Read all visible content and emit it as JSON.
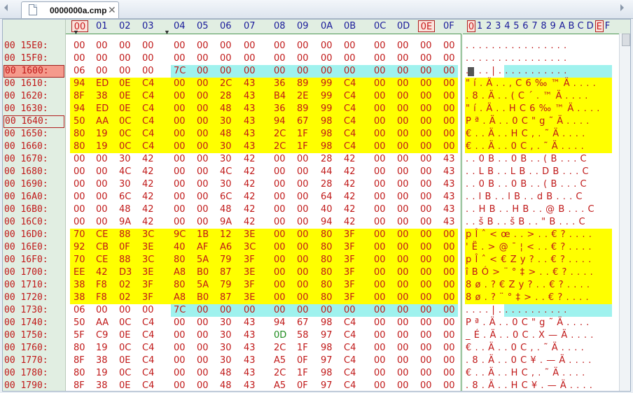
{
  "tab": {
    "title": "0000000a.cmp",
    "close": "✕"
  },
  "header": {
    "hex": [
      "00",
      "01",
      "02",
      "03",
      "04",
      "05",
      "06",
      "07",
      "08",
      "09",
      "0A",
      "0B",
      "0C",
      "0D",
      "0E",
      "0F"
    ],
    "ascii": [
      "0",
      "1",
      "2",
      "3",
      "4",
      "5",
      "6",
      "7",
      "8",
      "9",
      "A",
      "B",
      "C",
      "D",
      "E",
      "F"
    ]
  },
  "rows": [
    {
      "addr": "00 15E0:",
      "bytes": [
        "00",
        "00",
        "00",
        "00",
        "00",
        "00",
        "00",
        "00",
        "00",
        "00",
        "00",
        "00",
        "00",
        "00",
        "00",
        "00"
      ],
      "ascii": "................"
    },
    {
      "addr": "00 15F0:",
      "bytes": [
        "00",
        "00",
        "00",
        "00",
        "00",
        "00",
        "00",
        "00",
        "00",
        "00",
        "00",
        "00",
        "00",
        "00",
        "00",
        "00"
      ],
      "ascii": "................"
    },
    {
      "addr": "00 1600:",
      "bytes": [
        "06",
        "00",
        "00",
        "00",
        "7C",
        "00",
        "00",
        "00",
        "00",
        "00",
        "00",
        "00",
        "00",
        "00",
        "00",
        "00"
      ],
      "ascii": "....|..........."
    },
    {
      "addr": "00 1610:",
      "bytes": [
        "94",
        "ED",
        "0E",
        "C4",
        "00",
        "00",
        "2C",
        "43",
        "36",
        "89",
        "99",
        "C4",
        "00",
        "00",
        "00",
        "00"
      ],
      "ascii": "\"í.Ä..,C6‰™Ä...."
    },
    {
      "addr": "00 1620:",
      "bytes": [
        "8F",
        "38",
        "0E",
        "C4",
        "00",
        "00",
        "28",
        "43",
        "B4",
        "2E",
        "99",
        "C4",
        "00",
        "00",
        "00",
        "00"
      ],
      "ascii": ".8.Ä..(C´.™Ä...."
    },
    {
      "addr": "00 1630:",
      "bytes": [
        "94",
        "ED",
        "0E",
        "C4",
        "00",
        "00",
        "48",
        "43",
        "36",
        "89",
        "99",
        "C4",
        "00",
        "00",
        "00",
        "00"
      ],
      "ascii": "\"í.Ä..HC6‰™Ä...."
    },
    {
      "addr": "00 1640:",
      "bytes": [
        "50",
        "AA",
        "0C",
        "C4",
        "00",
        "00",
        "30",
        "43",
        "94",
        "67",
        "98",
        "C4",
        "00",
        "00",
        "00",
        "00"
      ],
      "ascii": "Pª.Ä..0C\"g˜Ä...."
    },
    {
      "addr": "00 1650:",
      "bytes": [
        "80",
        "19",
        "0C",
        "C4",
        "00",
        "00",
        "48",
        "43",
        "2C",
        "1F",
        "98",
        "C4",
        "00",
        "00",
        "00",
        "00"
      ],
      "ascii": "€..Ä..HC,.˜Ä...."
    },
    {
      "addr": "00 1660:",
      "bytes": [
        "80",
        "19",
        "0C",
        "C4",
        "00",
        "00",
        "30",
        "43",
        "2C",
        "1F",
        "98",
        "C4",
        "00",
        "00",
        "00",
        "00"
      ],
      "ascii": "€..Ä..0C,.˜Ä...."
    },
    {
      "addr": "00 1670:",
      "bytes": [
        "00",
        "00",
        "30",
        "42",
        "00",
        "00",
        "30",
        "42",
        "00",
        "00",
        "28",
        "42",
        "00",
        "00",
        "00",
        "43"
      ],
      "ascii": "..0B..0B..(B...C"
    },
    {
      "addr": "00 1680:",
      "bytes": [
        "00",
        "00",
        "4C",
        "42",
        "00",
        "00",
        "4C",
        "42",
        "00",
        "00",
        "44",
        "42",
        "00",
        "00",
        "00",
        "43"
      ],
      "ascii": "..LB..LB..DB...C"
    },
    {
      "addr": "00 1690:",
      "bytes": [
        "00",
        "00",
        "30",
        "42",
        "00",
        "00",
        "30",
        "42",
        "00",
        "00",
        "28",
        "42",
        "00",
        "00",
        "00",
        "43"
      ],
      "ascii": "..0B..0B..(B...C"
    },
    {
      "addr": "00 16A0:",
      "bytes": [
        "00",
        "00",
        "6C",
        "42",
        "00",
        "00",
        "6C",
        "42",
        "00",
        "00",
        "64",
        "42",
        "00",
        "00",
        "00",
        "43"
      ],
      "ascii": "..lB..lB..dB...C"
    },
    {
      "addr": "00 16B0:",
      "bytes": [
        "00",
        "00",
        "48",
        "42",
        "00",
        "00",
        "48",
        "42",
        "00",
        "00",
        "40",
        "42",
        "00",
        "00",
        "00",
        "43"
      ],
      "ascii": "..HB..HB..@B...C"
    },
    {
      "addr": "00 16C0:",
      "bytes": [
        "00",
        "00",
        "9A",
        "42",
        "00",
        "00",
        "9A",
        "42",
        "00",
        "00",
        "94",
        "42",
        "00",
        "00",
        "00",
        "43"
      ],
      "ascii": "..šB..šB..\"B...C"
    },
    {
      "addr": "00 16D0:",
      "bytes": [
        "70",
        "CE",
        "88",
        "3C",
        "9C",
        "1B",
        "12",
        "3E",
        "00",
        "00",
        "80",
        "3F",
        "00",
        "00",
        "00",
        "00"
      ],
      "ascii": "pÎˆ<œ..>..€?...."
    },
    {
      "addr": "00 16E0:",
      "bytes": [
        "92",
        "CB",
        "0F",
        "3E",
        "40",
        "AF",
        "A6",
        "3C",
        "00",
        "00",
        "80",
        "3F",
        "00",
        "00",
        "00",
        "00"
      ],
      "ascii": "'Ë.>@¯¦<..€?...."
    },
    {
      "addr": "00 16F0:",
      "bytes": [
        "70",
        "CE",
        "88",
        "3C",
        "80",
        "5A",
        "79",
        "3F",
        "00",
        "00",
        "80",
        "3F",
        "00",
        "00",
        "00",
        "00"
      ],
      "ascii": "pÎˆ<€Zy?..€?...."
    },
    {
      "addr": "00 1700:",
      "bytes": [
        "EE",
        "42",
        "D3",
        "3E",
        "A8",
        "B0",
        "87",
        "3E",
        "00",
        "00",
        "80",
        "3F",
        "00",
        "00",
        "00",
        "00"
      ],
      "ascii": "îBÓ>¨°‡>..€?...."
    },
    {
      "addr": "00 1710:",
      "bytes": [
        "38",
        "F8",
        "02",
        "3F",
        "80",
        "5A",
        "79",
        "3F",
        "00",
        "00",
        "80",
        "3F",
        "00",
        "00",
        "00",
        "00"
      ],
      "ascii": "8ø.?€Zy?..€?...."
    },
    {
      "addr": "00 1720:",
      "bytes": [
        "38",
        "F8",
        "02",
        "3F",
        "A8",
        "B0",
        "87",
        "3E",
        "00",
        "00",
        "80",
        "3F",
        "00",
        "00",
        "00",
        "00"
      ],
      "ascii": "8ø.?¨°‡>..€?...."
    },
    {
      "addr": "00 1730:",
      "bytes": [
        "06",
        "00",
        "00",
        "00",
        "7C",
        "00",
        "00",
        "00",
        "00",
        "00",
        "00",
        "00",
        "00",
        "00",
        "00",
        "00"
      ],
      "ascii": "....|..........."
    },
    {
      "addr": "00 1740:",
      "bytes": [
        "50",
        "AA",
        "0C",
        "C4",
        "00",
        "00",
        "30",
        "43",
        "94",
        "67",
        "98",
        "C4",
        "00",
        "00",
        "00",
        "00"
      ],
      "ascii": "Pª.Ä..0C\"g˜Ä...."
    },
    {
      "addr": "00 1750:",
      "bytes": [
        "5F",
        "C9",
        "0E",
        "C4",
        "00",
        "00",
        "30",
        "43",
        "0D",
        "58",
        "97",
        "C4",
        "00",
        "00",
        "00",
        "00"
      ],
      "ascii": "_É.Ä..0C.X—Ä...."
    },
    {
      "addr": "00 1760:",
      "bytes": [
        "80",
        "19",
        "0C",
        "C4",
        "00",
        "00",
        "30",
        "43",
        "2C",
        "1F",
        "98",
        "C4",
        "00",
        "00",
        "00",
        "00"
      ],
      "ascii": "€..Ä..0C,.˜Ä...."
    },
    {
      "addr": "00 1770:",
      "bytes": [
        "8F",
        "38",
        "0E",
        "C4",
        "00",
        "00",
        "30",
        "43",
        "A5",
        "0F",
        "97",
        "C4",
        "00",
        "00",
        "00",
        "00"
      ],
      "ascii": ".8.Ä..0C¥.—Ä...."
    },
    {
      "addr": "00 1780:",
      "bytes": [
        "80",
        "19",
        "0C",
        "C4",
        "00",
        "00",
        "48",
        "43",
        "2C",
        "1F",
        "98",
        "C4",
        "00",
        "00",
        "00",
        "00"
      ],
      "ascii": "€..Ä..HC,.˜Ä...."
    },
    {
      "addr": "00 1790:",
      "bytes": [
        "8F",
        "38",
        "0E",
        "C4",
        "00",
        "00",
        "48",
        "43",
        "A5",
        "0F",
        "97",
        "C4",
        "00",
        "00",
        "00",
        "00"
      ],
      "ascii": ".8.Ä..HC¥.—Ä...."
    }
  ],
  "highlights": {
    "yellow_rows": [
      3,
      4,
      5,
      6,
      7,
      8,
      15,
      16,
      17,
      18,
      19,
      20
    ],
    "cyan_rows": [
      2,
      21
    ],
    "selected_address_row": 2,
    "cursor_address_row": 6,
    "green_cells": [
      [
        23,
        8
      ]
    ]
  },
  "colors": {
    "byte_text": "#c01818",
    "yellow": "#ffff00",
    "cyan": "#9ff2ee",
    "header_text": "#1a1a9a",
    "gutter": "#e1eee2"
  }
}
